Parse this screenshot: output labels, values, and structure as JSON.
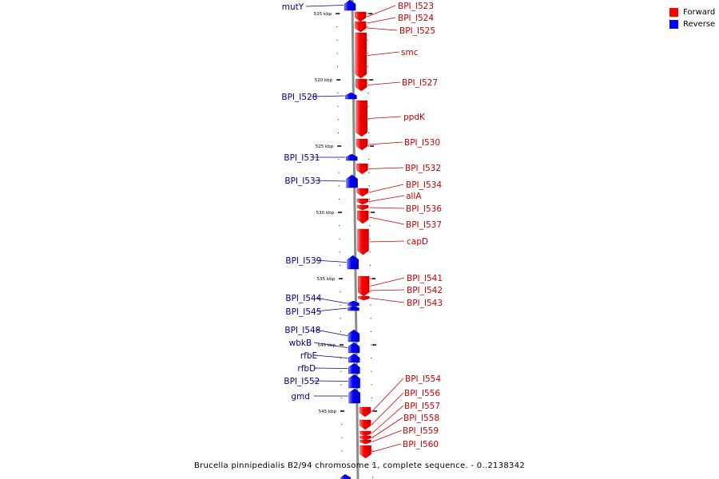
{
  "colors": {
    "forward": "#ff0000",
    "reverse": "#0000ff",
    "backbone": "#8c8c8c",
    "forward_label": "#cc0000",
    "reverse_label": "#00008b"
  },
  "legend": [
    {
      "label": "Forward",
      "color": "#ff0000"
    },
    {
      "label": "Reverse",
      "color": "#0000ff"
    }
  ],
  "caption": "Brucella pinnipedialis B2/94 chromosome 1, complete sequence. - 0..2138342",
  "ticks": [
    {
      "label": "515 kbp",
      "kbp": 515
    },
    {
      "label": "520 kbp",
      "kbp": 520
    },
    {
      "label": "525 kbp",
      "kbp": 525
    },
    {
      "label": "530 kbp",
      "kbp": 530
    },
    {
      "label": "535 kbp",
      "kbp": 535
    },
    {
      "label": "540 kbp",
      "kbp": 540
    },
    {
      "label": "545 kbp",
      "kbp": 545
    }
  ],
  "genes": [
    {
      "name": "mutY",
      "strand": "reverse"
    },
    {
      "name": "BPI_I523",
      "strand": "forward"
    },
    {
      "name": "BPI_I524",
      "strand": "forward"
    },
    {
      "name": "BPI_I525",
      "strand": "forward"
    },
    {
      "name": "smc",
      "strand": "forward"
    },
    {
      "name": "BPI_I527",
      "strand": "forward"
    },
    {
      "name": "BPI_I528",
      "strand": "reverse"
    },
    {
      "name": "ppdK",
      "strand": "forward"
    },
    {
      "name": "BPI_I530",
      "strand": "forward"
    },
    {
      "name": "BPI_I531",
      "strand": "reverse"
    },
    {
      "name": "BPI_I532",
      "strand": "forward"
    },
    {
      "name": "BPI_I533",
      "strand": "reverse"
    },
    {
      "name": "BPI_I534",
      "strand": "forward"
    },
    {
      "name": "allA",
      "strand": "forward"
    },
    {
      "name": "BPI_I536",
      "strand": "forward"
    },
    {
      "name": "BPI_I537",
      "strand": "forward"
    },
    {
      "name": "capD",
      "strand": "forward"
    },
    {
      "name": "BPI_I539",
      "strand": "reverse"
    },
    {
      "name": "BPI_I541",
      "strand": "forward"
    },
    {
      "name": "BPI_I542",
      "strand": "forward"
    },
    {
      "name": "BPI_I543",
      "strand": "forward"
    },
    {
      "name": "BPI_I544",
      "strand": "reverse"
    },
    {
      "name": "BPI_I545",
      "strand": "reverse"
    },
    {
      "name": "BPI_I548",
      "strand": "reverse"
    },
    {
      "name": "wbkB",
      "strand": "reverse"
    },
    {
      "name": "rfbE",
      "strand": "reverse"
    },
    {
      "name": "rfbD",
      "strand": "reverse"
    },
    {
      "name": "BPI_I552",
      "strand": "reverse"
    },
    {
      "name": "gmd",
      "strand": "reverse"
    },
    {
      "name": "BPI_I554",
      "strand": "forward"
    },
    {
      "name": "BPI_I556",
      "strand": "forward"
    },
    {
      "name": "BPI_I557",
      "strand": "forward"
    },
    {
      "name": "BPI_I558",
      "strand": "forward"
    },
    {
      "name": "BPI_I559",
      "strand": "forward"
    },
    {
      "name": "BPI_I560",
      "strand": "forward"
    }
  ]
}
